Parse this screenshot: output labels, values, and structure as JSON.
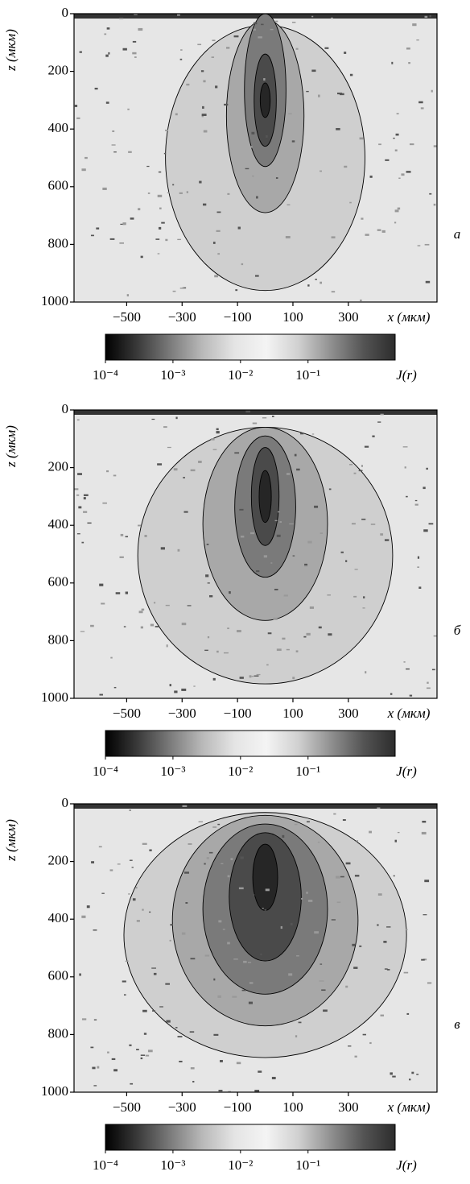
{
  "chart_data": [
    {
      "type": "contour",
      "panel_label": "а",
      "x_label": "x (мкм)",
      "y_label": "z (мкм)",
      "xlim": [
        -690,
        620
      ],
      "ylim": [
        0,
        1000
      ],
      "y_inverted": true,
      "xticks": [
        {
          "value": -500,
          "label": "−500"
        },
        {
          "value": -300,
          "label": "−300"
        },
        {
          "value": -100,
          "label": "−100"
        },
        100,
        300
      ],
      "yticks": [
        0,
        200,
        400,
        600,
        800,
        1000
      ],
      "colorbar": {
        "label": "J(r)",
        "log": true,
        "lim": [
          0.0001,
          1.95
        ],
        "ticks": [
          {
            "value": 0.0001,
            "label": "10⁻⁴"
          },
          {
            "value": 0.001,
            "label": "10⁻³"
          },
          {
            "value": 0.01,
            "label": "10⁻²"
          },
          {
            "value": 0.1,
            "label": "10⁻¹"
          }
        ],
        "colors": [
          "#000000",
          "#3a3a3a",
          "#7a7a7a",
          "#b8b8b8",
          "#e4e4e4",
          "#f4f4f4",
          "#d0d0d0",
          "#909090",
          "#555555",
          "#2c2c2c"
        ]
      }
    },
    {
      "type": "contour",
      "panel_label": "б",
      "x_label": "x (мкм)",
      "y_label": "z (мкм)",
      "xlim": [
        -690,
        620
      ],
      "ylim": [
        0,
        1000
      ],
      "y_inverted": true,
      "xticks": [
        {
          "value": -500,
          "label": "−500"
        },
        {
          "value": -300,
          "label": "−300"
        },
        {
          "value": -100,
          "label": "−100"
        },
        100,
        300
      ],
      "yticks": [
        0,
        200,
        400,
        600,
        800,
        1000
      ],
      "colorbar": {
        "label": "J(r)",
        "log": true,
        "lim": [
          0.0001,
          1.95
        ],
        "ticks": [
          {
            "value": 0.0001,
            "label": "10⁻⁴"
          },
          {
            "value": 0.001,
            "label": "10⁻³"
          },
          {
            "value": 0.01,
            "label": "10⁻²"
          },
          {
            "value": 0.1,
            "label": "10⁻¹"
          }
        ],
        "colors": [
          "#000000",
          "#3a3a3a",
          "#7a7a7a",
          "#b8b8b8",
          "#e4e4e4",
          "#f4f4f4",
          "#d0d0d0",
          "#909090",
          "#555555",
          "#2c2c2c"
        ]
      }
    },
    {
      "type": "contour",
      "panel_label": "в",
      "x_label": "x (мкм)",
      "y_label": "z (мкм)",
      "xlim": [
        -690,
        620
      ],
      "ylim": [
        0,
        1000
      ],
      "y_inverted": true,
      "xticks": [
        {
          "value": -500,
          "label": "−500"
        },
        {
          "value": -300,
          "label": "−300"
        },
        {
          "value": -100,
          "label": "−100"
        },
        100,
        300
      ],
      "yticks": [
        0,
        200,
        400,
        600,
        800,
        1000
      ],
      "colorbar": {
        "label": "J(r)",
        "log": true,
        "lim": [
          0.0001,
          1.95
        ],
        "ticks": [
          {
            "value": 0.0001,
            "label": "10⁻⁴"
          },
          {
            "value": 0.001,
            "label": "10⁻³"
          },
          {
            "value": 0.01,
            "label": "10⁻²"
          },
          {
            "value": 0.1,
            "label": "10⁻¹"
          }
        ],
        "colors": [
          "#000000",
          "#3a3a3a",
          "#7a7a7a",
          "#b8b8b8",
          "#e4e4e4",
          "#f4f4f4",
          "#d0d0d0",
          "#909090",
          "#555555",
          "#2c2c2c"
        ]
      }
    }
  ]
}
